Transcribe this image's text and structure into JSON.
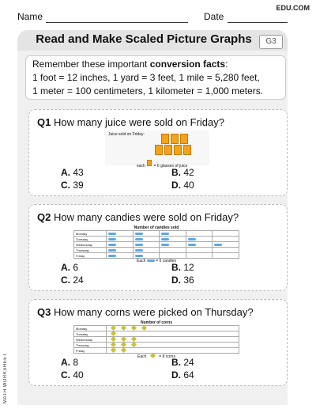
{
  "header": {
    "name_label": "Name",
    "date_label": "Date",
    "brand": "EDU.COM"
  },
  "title": "Read and Make Scaled Picture Graphs",
  "grade": "G3",
  "facts": {
    "intro": "Remember these important ",
    "intro_bold": "conversion facts",
    "intro_end": ":",
    "line1": "1 foot = 12 inches, 1 yard = 3 feet, 1 mile = 5,280 feet,",
    "line2": "1 meter = 100 centimeters, 1 kilometer = 1,000 meters."
  },
  "side_label": "MATH WORKSHEET",
  "questions": [
    {
      "num": "Q1",
      "text": " How many juice were sold on Friday?",
      "graph_caption": "Juice sold on Friday:",
      "graph_key_pre": "each",
      "graph_key_post": "= 6 glasses of juice",
      "options": {
        "a": "43",
        "b": "42",
        "c": "39",
        "d": "40"
      }
    },
    {
      "num": "Q2",
      "text": " How many candies were sold on Friday?",
      "graph_caption": "Number of candies sold",
      "rows": [
        "Monday",
        "Tuesday",
        "Wednesday",
        "Thursday",
        "Friday"
      ],
      "graph_key_pre": "Each",
      "graph_key_post": "= 6 candies",
      "options": {
        "a": "6",
        "b": "12",
        "c": "24",
        "d": "36"
      }
    },
    {
      "num": "Q3",
      "text": " How many corns were picked on Thursday?",
      "graph_caption": "Number of corns",
      "rows": [
        "Monday",
        "Tuesday",
        "Wednesday",
        "Thursday",
        "Friday"
      ],
      "graph_key_pre": "Each",
      "graph_key_post": "= 8 corns",
      "options": {
        "a": "8",
        "b": "24",
        "c": "40",
        "d": "64"
      }
    }
  ],
  "option_letters": {
    "a": "A.",
    "b": "B.",
    "c": "C.",
    "d": "D."
  }
}
